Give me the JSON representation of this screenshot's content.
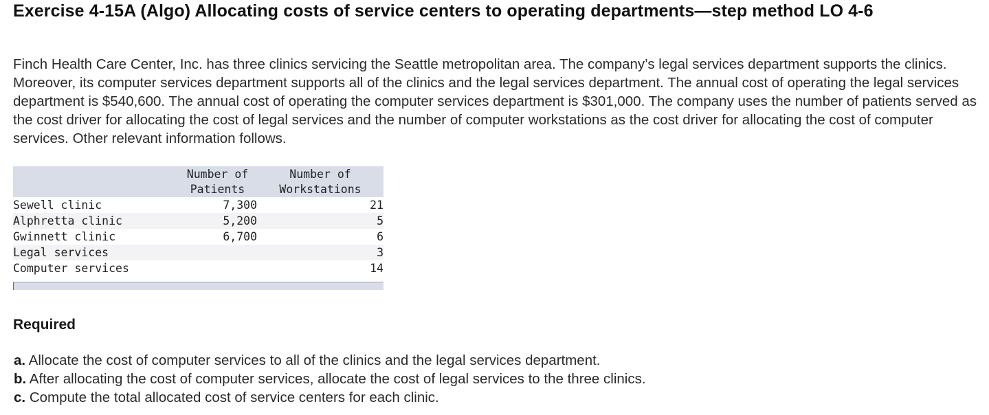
{
  "header": {
    "title": "Exercise 4-15A (Algo) Allocating costs of service centers to operating departments—step method LO 4-6"
  },
  "intro": {
    "text": "Finch Health Care Center, Inc. has three clinics servicing the Seattle metropolitan area. The company’s legal services department supports the clinics. Moreover, its computer services department supports all of the clinics and the legal services department. The annual cost of operating the legal services department is $540,600. The annual cost of operating the computer services department is $301,000. The company uses the number of patients served as the cost driver for allocating the cost of legal services and the number of computer workstations as the cost driver for allocating the cost of computer services. Other relevant information follows."
  },
  "table": {
    "headers": {
      "patients_line1": "Number of",
      "patients_line2": "Patients",
      "workstations_line1": "Number of",
      "workstations_line2": "Workstations"
    },
    "rows": [
      {
        "label": "Sewell clinic",
        "patients": "7,300",
        "workstations": "21"
      },
      {
        "label": "Alphretta clinic",
        "patients": "5,200",
        "workstations": "5"
      },
      {
        "label": "Gwinnett clinic",
        "patients": "6,700",
        "workstations": "6"
      },
      {
        "label": "Legal services",
        "patients": "",
        "workstations": "3"
      },
      {
        "label": "Computer services",
        "patients": "",
        "workstations": "14"
      }
    ]
  },
  "required": {
    "heading": "Required",
    "items": [
      {
        "letter": "a.",
        "text": "Allocate the cost of computer services to all of the clinics and the legal services department."
      },
      {
        "letter": "b.",
        "text": "After allocating the cost of computer services, allocate the cost of legal services to the three clinics."
      },
      {
        "letter": "c.",
        "text": "Compute the total allocated cost of service centers for each clinic."
      }
    ]
  }
}
